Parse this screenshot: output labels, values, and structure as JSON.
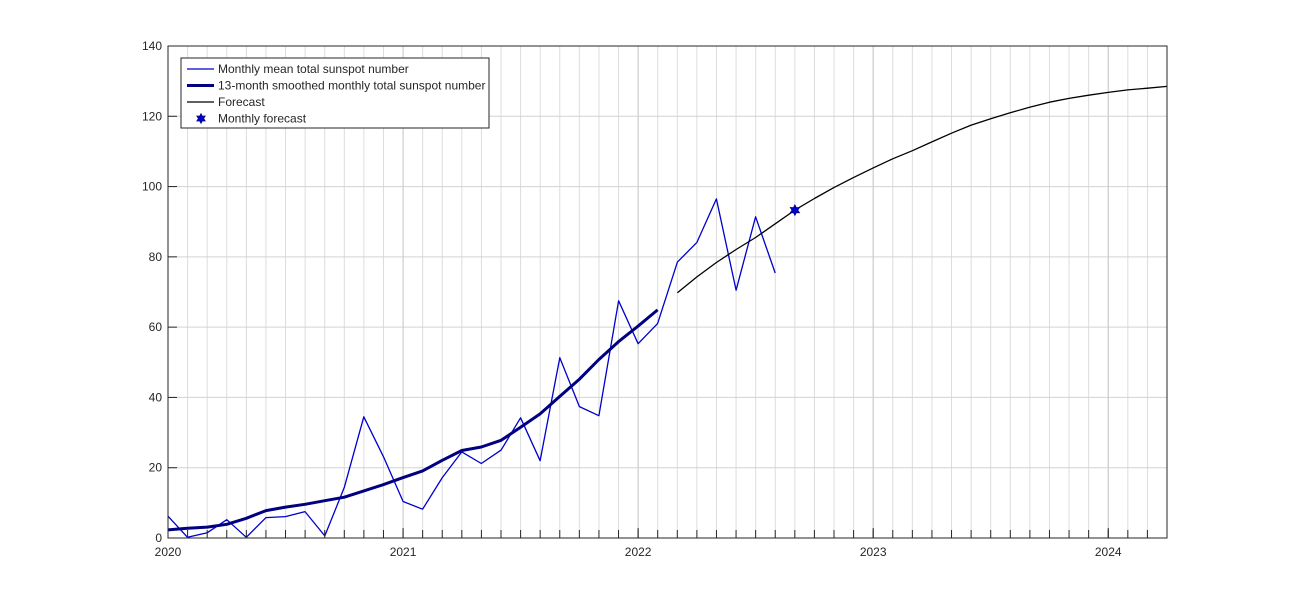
{
  "chart_data": {
    "type": "line",
    "title": "",
    "xlabel": "",
    "ylabel": "",
    "xlim": [
      2020.0,
      2024.25
    ],
    "ylim": [
      0,
      140
    ],
    "x_ticks": [
      2020,
      2021,
      2022,
      2023,
      2024
    ],
    "x_tick_labels": [
      "2020",
      "2021",
      "2022",
      "2023",
      "2024"
    ],
    "y_ticks": [
      0,
      20,
      40,
      60,
      80,
      100,
      120,
      140
    ],
    "y_tick_labels": [
      "0",
      "20",
      "40",
      "60",
      "80",
      "100",
      "120",
      "140"
    ],
    "grid": true,
    "minor_grid": "monthly",
    "legend_position": "top-left",
    "legend": [
      {
        "label": "Monthly mean total sunspot number",
        "style": "thin-line",
        "color": "#0000cc"
      },
      {
        "label": "13-month smoothed monthly total sunspot number",
        "style": "thick-line",
        "color": "#000080"
      },
      {
        "label": "Forecast",
        "style": "thin-line",
        "color": "#000000"
      },
      {
        "label": "Monthly forecast",
        "style": "star-marker",
        "color": "#0000cc"
      }
    ],
    "series": [
      {
        "name": "Monthly mean total sunspot number",
        "color": "#0000cc",
        "x": [
          2020.0,
          2020.083,
          2020.167,
          2020.25,
          2020.333,
          2020.417,
          2020.5,
          2020.583,
          2020.667,
          2020.75,
          2020.833,
          2020.917,
          2021.0,
          2021.083,
          2021.167,
          2021.25,
          2021.333,
          2021.417,
          2021.5,
          2021.583,
          2021.667,
          2021.75,
          2021.833,
          2021.917,
          2022.0,
          2022.083,
          2022.167,
          2022.25,
          2022.333,
          2022.417,
          2022.5,
          2022.583
        ],
        "y": [
          6.2,
          0.2,
          1.5,
          5.2,
          0.2,
          5.8,
          6.1,
          7.5,
          0.6,
          14.4,
          34.5,
          23.1,
          10.4,
          8.2,
          17.2,
          24.5,
          21.2,
          25.0,
          34.2,
          22.0,
          51.3,
          37.4,
          34.8,
          67.5,
          55.3,
          61.0,
          78.5,
          84.1,
          96.5,
          70.5,
          91.4,
          75.4
        ]
      },
      {
        "name": "13-month smoothed monthly total sunspot number",
        "color": "#000080",
        "x": [
          2020.0,
          2020.083,
          2020.167,
          2020.25,
          2020.333,
          2020.417,
          2020.5,
          2020.583,
          2020.667,
          2020.75,
          2020.833,
          2020.917,
          2021.0,
          2021.083,
          2021.167,
          2021.25,
          2021.333,
          2021.417,
          2021.5,
          2021.583,
          2021.667,
          2021.75,
          2021.833,
          2021.917,
          2022.0,
          2022.083
        ],
        "y": [
          2.3,
          2.8,
          3.1,
          3.9,
          5.6,
          7.8,
          8.8,
          9.6,
          10.6,
          11.6,
          13.4,
          15.2,
          17.2,
          19.1,
          22.1,
          24.9,
          25.9,
          27.8,
          31.5,
          35.3,
          40.3,
          45.2,
          50.8,
          55.9,
          60.3,
          64.9
        ]
      },
      {
        "name": "Forecast",
        "color": "#000000",
        "x": [
          2022.167,
          2022.25,
          2022.333,
          2022.417,
          2022.5,
          2022.583,
          2022.667,
          2022.75,
          2022.833,
          2022.917,
          2023.0,
          2023.083,
          2023.167,
          2023.25,
          2023.333,
          2023.417,
          2023.5,
          2023.583,
          2023.667,
          2023.75,
          2023.833,
          2023.917,
          2024.0,
          2024.083,
          2024.167,
          2024.25
        ],
        "y": [
          69.8,
          74.3,
          78.4,
          82.1,
          85.5,
          89.4,
          93.3,
          96.6,
          99.7,
          102.6,
          105.3,
          107.9,
          110.2,
          112.7,
          115.2,
          117.5,
          119.3,
          121.0,
          122.6,
          124.0,
          125.1,
          126.0,
          126.8,
          127.5,
          128.0,
          128.5
        ]
      }
    ],
    "markers": [
      {
        "name": "Monthly forecast",
        "x": 2022.667,
        "y": 93.3,
        "color": "#0000cc"
      }
    ]
  }
}
